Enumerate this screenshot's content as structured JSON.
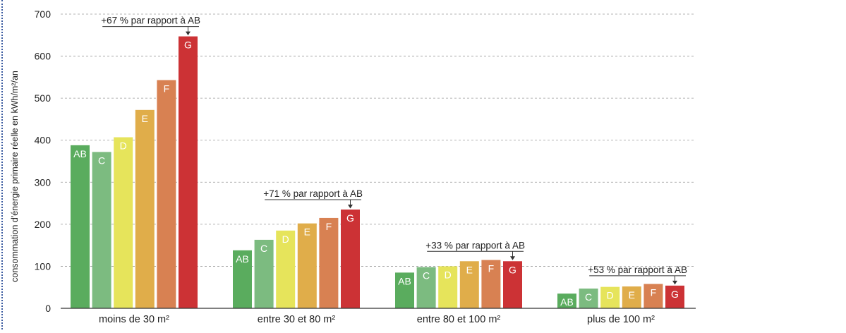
{
  "chart_data": {
    "type": "bar",
    "title": "",
    "ylabel": "consommation d'énergie primaire réelle en kWh/m²/an",
    "xlabel": "",
    "ylim": [
      0,
      700
    ],
    "yticks": [
      0,
      100,
      200,
      300,
      400,
      500,
      600,
      700
    ],
    "grid": true,
    "series_labels": [
      "AB",
      "C",
      "D",
      "E",
      "F",
      "G"
    ],
    "colors": {
      "AB": "#5aac5e",
      "C": "#7cbb80",
      "D": "#e6e45b",
      "E": "#e0ad4a",
      "F": "#d88152",
      "G": "#cc3235"
    },
    "groups": [
      {
        "category": "moins de 30 m²",
        "values": [
          388,
          372,
          407,
          472,
          543,
          647
        ],
        "annotation": "+67 % par rapport à AB"
      },
      {
        "category": "entre 30 et 80 m²",
        "values": [
          138,
          163,
          185,
          202,
          215,
          235
        ],
        "annotation": "+71 % par rapport à AB"
      },
      {
        "category": "entre 80 et 100 m²",
        "values": [
          85,
          98,
          100,
          112,
          115,
          112
        ],
        "annotation": "+33 % par rapport à AB"
      },
      {
        "category": "plus de 100 m²",
        "values": [
          35,
          47,
          51,
          52,
          58,
          54
        ],
        "annotation": "+53 % par rapport à AB"
      }
    ]
  }
}
